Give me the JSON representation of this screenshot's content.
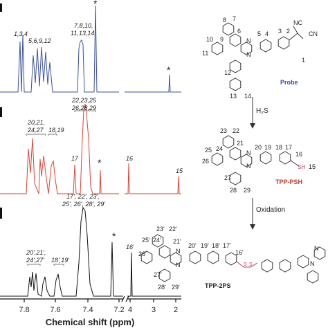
{
  "spectra": [
    {
      "compound": "Probe",
      "peak_labels": [
        "1,3,4",
        "5,6,9,12",
        "7,8,10,",
        "11,13,14",
        "*",
        "*"
      ]
    },
    {
      "compound": "TPP-PSH",
      "peak_labels": [
        "22,23,25",
        "26,28,29",
        "20,21,",
        "24,27",
        "18,19",
        "17",
        "*",
        "16",
        "15"
      ]
    },
    {
      "compound": "TPP-2PS",
      "peak_labels": [
        "17', 22', 23',",
        "25', 26', 28', 29'",
        "20',21',",
        "24',27'",
        "18',19'",
        "*",
        "16'"
      ]
    }
  ],
  "axis": {
    "label": "Chemical shift (ppm)",
    "ticks": [
      "7.8",
      "7.6",
      "7.4",
      "7.2",
      "4",
      "3",
      "2"
    ]
  },
  "scheme": {
    "structures": [
      {
        "name": "Probe",
        "atom_labels": [
          "8",
          "7",
          "10",
          "9",
          "6",
          "11",
          "5",
          "4",
          "3",
          "2",
          "NC",
          "CN",
          "1",
          "12",
          "13",
          "14",
          "N",
          "N"
        ]
      },
      {
        "name": "TPP-PSH",
        "atom_labels": [
          "23",
          "22",
          "21",
          "25",
          "24",
          "20",
          "19",
          "18",
          "17",
          "16",
          "26",
          "SH",
          "15",
          "27",
          "28",
          "29",
          "N",
          "N"
        ]
      },
      {
        "name": "TPP-2PS",
        "atom_labels": [
          "23'",
          "22'",
          "21'",
          "25'",
          "24'",
          "20'",
          "19'",
          "18'",
          "17'",
          "16'",
          "26'",
          "S",
          "S",
          "27'",
          "28'",
          "29'",
          "N",
          "N",
          "N",
          "N"
        ]
      }
    ],
    "steps": [
      "H₂S",
      "Oxidation"
    ]
  }
}
